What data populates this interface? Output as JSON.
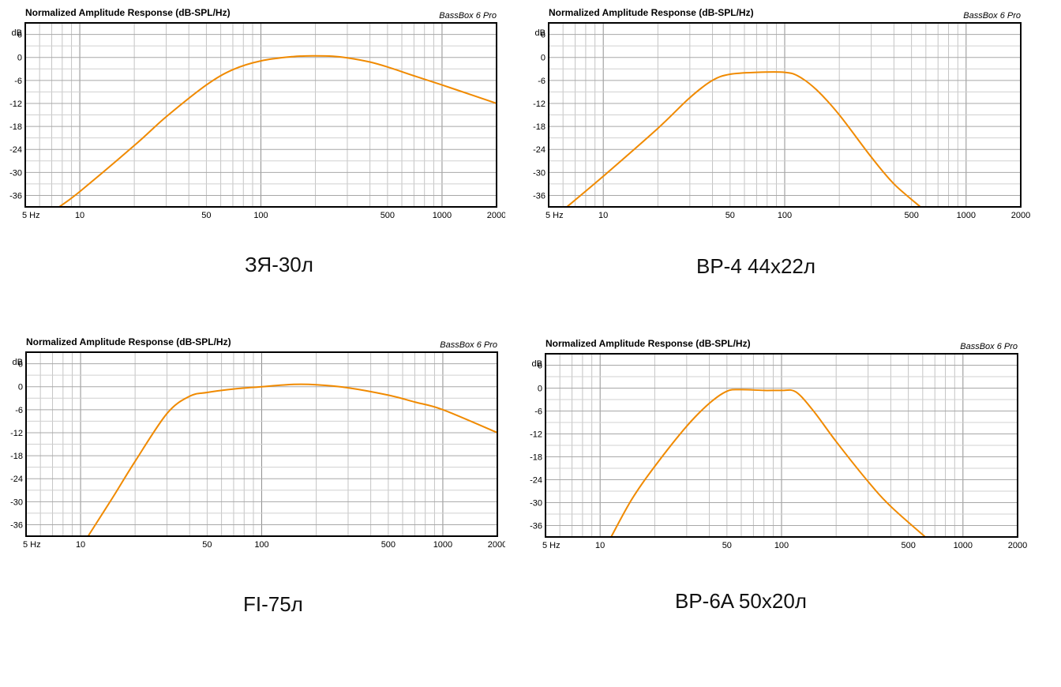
{
  "common": {
    "title": "Normalized Amplitude Response (dB-SPL/Hz)",
    "software": "BassBox 6 Pro",
    "y_unit": "dB",
    "y_ticks": [
      "6",
      "0",
      "-6",
      "-12",
      "-18",
      "-24",
      "-30",
      "-36"
    ],
    "x_ticks": [
      {
        "v": 5,
        "label": "5 Hz"
      },
      {
        "v": 10,
        "label": "10"
      },
      {
        "v": 50,
        "label": "50"
      },
      {
        "v": 100,
        "label": "100"
      },
      {
        "v": 500,
        "label": "500"
      },
      {
        "v": 1000,
        "label": "1000"
      },
      {
        "v": 2000,
        "label": "2000"
      }
    ],
    "curve_color": "#f08a00"
  },
  "chart_data": [
    {
      "type": "line",
      "title": "Normalized Amplitude Response (dB-SPL/Hz)",
      "caption": "ЗЯ-30л",
      "xscale": "log",
      "xlim": [
        5,
        2000
      ],
      "ylim": [
        -39,
        9
      ],
      "grid": true,
      "x": [
        7.7,
        10,
        20,
        30,
        50,
        70,
        100,
        150,
        200,
        250,
        300,
        400,
        500,
        700,
        1000,
        1500,
        2000
      ],
      "y": [
        -39,
        -35,
        -23,
        -15.5,
        -7.2,
        -3.2,
        -0.9,
        0.2,
        0.4,
        0.3,
        -0.1,
        -1.2,
        -2.5,
        -4.8,
        -7.2,
        -10,
        -12
      ]
    },
    {
      "type": "line",
      "title": "Normalized Amplitude Response (dB-SPL/Hz)",
      "caption": "BP-4 44x22л",
      "xscale": "log",
      "xlim": [
        5,
        2000
      ],
      "ylim": [
        -39,
        9
      ],
      "grid": true,
      "x": [
        6.3,
        10,
        20,
        30,
        40,
        50,
        70,
        100,
        120,
        150,
        200,
        300,
        400,
        560
      ],
      "y": [
        -39,
        -31,
        -18.5,
        -10.5,
        -6,
        -4.4,
        -3.9,
        -3.9,
        -5,
        -8.5,
        -15,
        -26,
        -33,
        -39
      ]
    },
    {
      "type": "line",
      "title": "Normalized Amplitude Response (dB-SPL/Hz)",
      "caption": "FI-75л",
      "xscale": "log",
      "xlim": [
        5,
        2000
      ],
      "ylim": [
        -39,
        9
      ],
      "grid": true,
      "x": [
        11,
        15,
        20,
        30,
        40,
        50,
        70,
        100,
        150,
        200,
        300,
        500,
        700,
        1000,
        2000
      ],
      "y": [
        -39,
        -29,
        -19.5,
        -7,
        -2.5,
        -1.5,
        -0.6,
        0,
        0.6,
        0.5,
        -0.3,
        -2.2,
        -4,
        -6,
        -12
      ]
    },
    {
      "type": "line",
      "title": "Normalized Amplitude Response (dB-SPL/Hz)",
      "caption": "BP-6A 50x20л",
      "xscale": "log",
      "xlim": [
        5,
        2000
      ],
      "ylim": [
        -39,
        9
      ],
      "grid": true,
      "x": [
        11.5,
        15,
        20,
        30,
        40,
        50,
        60,
        80,
        100,
        120,
        150,
        200,
        300,
        400,
        620
      ],
      "y": [
        -39,
        -29,
        -20.5,
        -10,
        -4,
        -0.8,
        -0.4,
        -0.6,
        -0.6,
        -1,
        -6,
        -14,
        -24.5,
        -31,
        -39
      ]
    }
  ]
}
